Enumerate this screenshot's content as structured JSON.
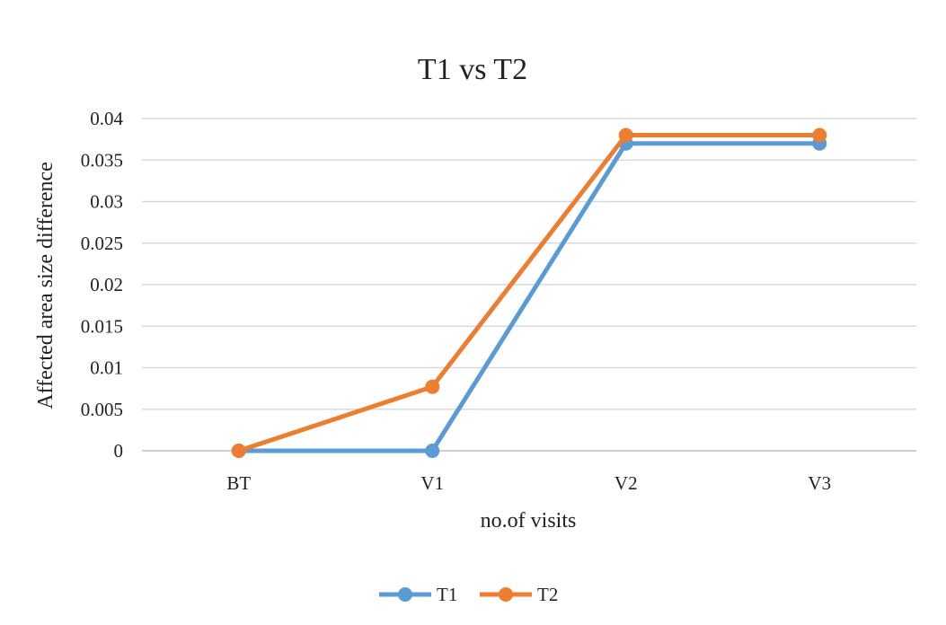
{
  "chart_data": {
    "type": "line",
    "title": "T1 vs T2",
    "xlabel": "no.of visits",
    "ylabel": "Affected area size difference",
    "categories": [
      "BT",
      "V1",
      "V2",
      "V3"
    ],
    "ylim": [
      0,
      0.04
    ],
    "yticks": [
      "0",
      "0.005",
      "0.01",
      "0.015",
      "0.02",
      "0.025",
      "0.03",
      "0.035",
      "0.04"
    ],
    "grid": "horizontal",
    "legend_position": "bottom",
    "series": [
      {
        "name": "T1",
        "color": "#5B9BD5",
        "values": [
          0,
          0,
          0.037,
          0.037
        ]
      },
      {
        "name": "T2",
        "color": "#ED7D31",
        "values": [
          0,
          0.0077,
          0.038,
          0.038
        ]
      }
    ]
  }
}
